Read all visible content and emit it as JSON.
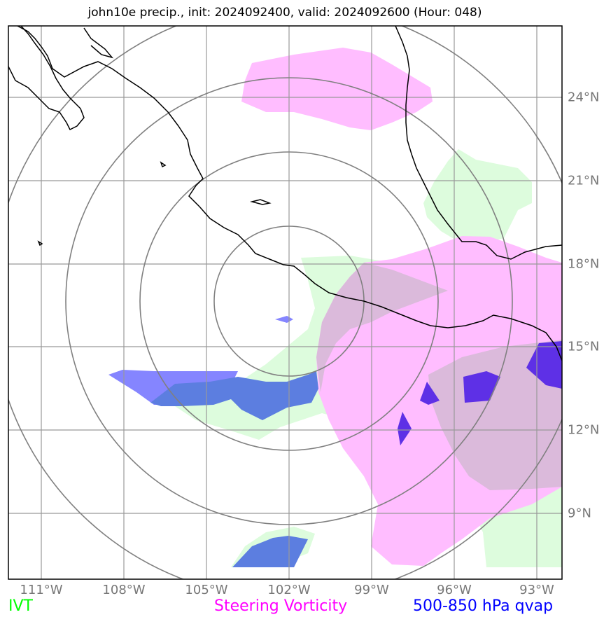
{
  "title": "john10e precip., init: 2024092400, valid: 2024092600 (Hour: 048)",
  "lon_labels": [
    "111°W",
    "108°W",
    "105°W",
    "102°W",
    "99°W",
    "96°W",
    "93°W"
  ],
  "lat_labels": [
    "24°N",
    "21°N",
    "18°N",
    "15°N",
    "12°N",
    "9°N"
  ],
  "legend": {
    "ivt": {
      "label": "IVT",
      "color": "#00ff00"
    },
    "vorticity": {
      "label": "Steering Vorticity",
      "color": "#ff00ff"
    },
    "qvap": {
      "label": "500-850 hPa qvap",
      "color": "#0000ff"
    }
  },
  "layers": {
    "ivt_fill": "#ddfcdd",
    "vorticity_fill": "#ffbdff",
    "overlap_fill": "#dbbadb",
    "qvap_fill": "#5c7ee0",
    "qvap_light": "#8585ff",
    "qvap_dark": "#5e30e6"
  },
  "map_extent": {
    "lon_min": -112.2,
    "lon_max": -92.2,
    "lat_min": 7.0,
    "lat_max": 26.5
  }
}
